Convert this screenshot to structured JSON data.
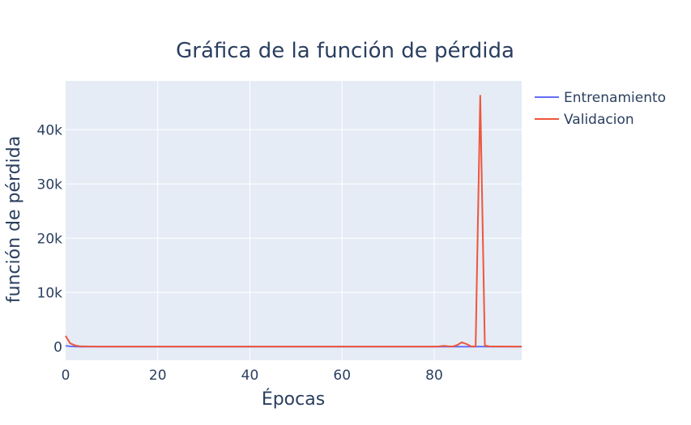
{
  "chart_data": {
    "type": "line",
    "title": "Gráfica de la función de pérdida",
    "xlabel": "Épocas",
    "ylabel": "función de pérdida",
    "xlim": [
      0,
      99
    ],
    "ylim": [
      -2500,
      49000
    ],
    "x_ticks": [
      0,
      20,
      40,
      60,
      80
    ],
    "x_tick_labels": [
      "0",
      "20",
      "40",
      "60",
      "80"
    ],
    "y_ticks": [
      0,
      10000,
      20000,
      30000,
      40000
    ],
    "y_tick_labels": [
      "0",
      "10k",
      "20k",
      "30k",
      "40k"
    ],
    "grid": true,
    "legend_position": "top-right",
    "series": [
      {
        "name": "Entrenamiento",
        "color": "#636efa",
        "points": [
          [
            0,
            150
          ],
          [
            1,
            60
          ],
          [
            2,
            20
          ],
          [
            3,
            10
          ],
          [
            10,
            5
          ],
          [
            30,
            5
          ],
          [
            50,
            5
          ],
          [
            70,
            5
          ],
          [
            85,
            5
          ],
          [
            88,
            5
          ],
          [
            89,
            10
          ],
          [
            90,
            15
          ],
          [
            91,
            10
          ],
          [
            92,
            5
          ],
          [
            99,
            5
          ]
        ]
      },
      {
        "name": "Validacion",
        "color": "#ef553b",
        "points": [
          [
            0,
            2000
          ],
          [
            1,
            600
          ],
          [
            2,
            250
          ],
          [
            3,
            80
          ],
          [
            5,
            30
          ],
          [
            10,
            20
          ],
          [
            20,
            15
          ],
          [
            40,
            15
          ],
          [
            60,
            15
          ],
          [
            80,
            20
          ],
          [
            81,
            40
          ],
          [
            82,
            150
          ],
          [
            83,
            80
          ],
          [
            84,
            30
          ],
          [
            85,
            300
          ],
          [
            86,
            800
          ],
          [
            87,
            500
          ],
          [
            88,
            80
          ],
          [
            89,
            40
          ],
          [
            90,
            46300
          ],
          [
            91,
            200
          ],
          [
            92,
            50
          ],
          [
            99,
            20
          ]
        ]
      }
    ]
  }
}
